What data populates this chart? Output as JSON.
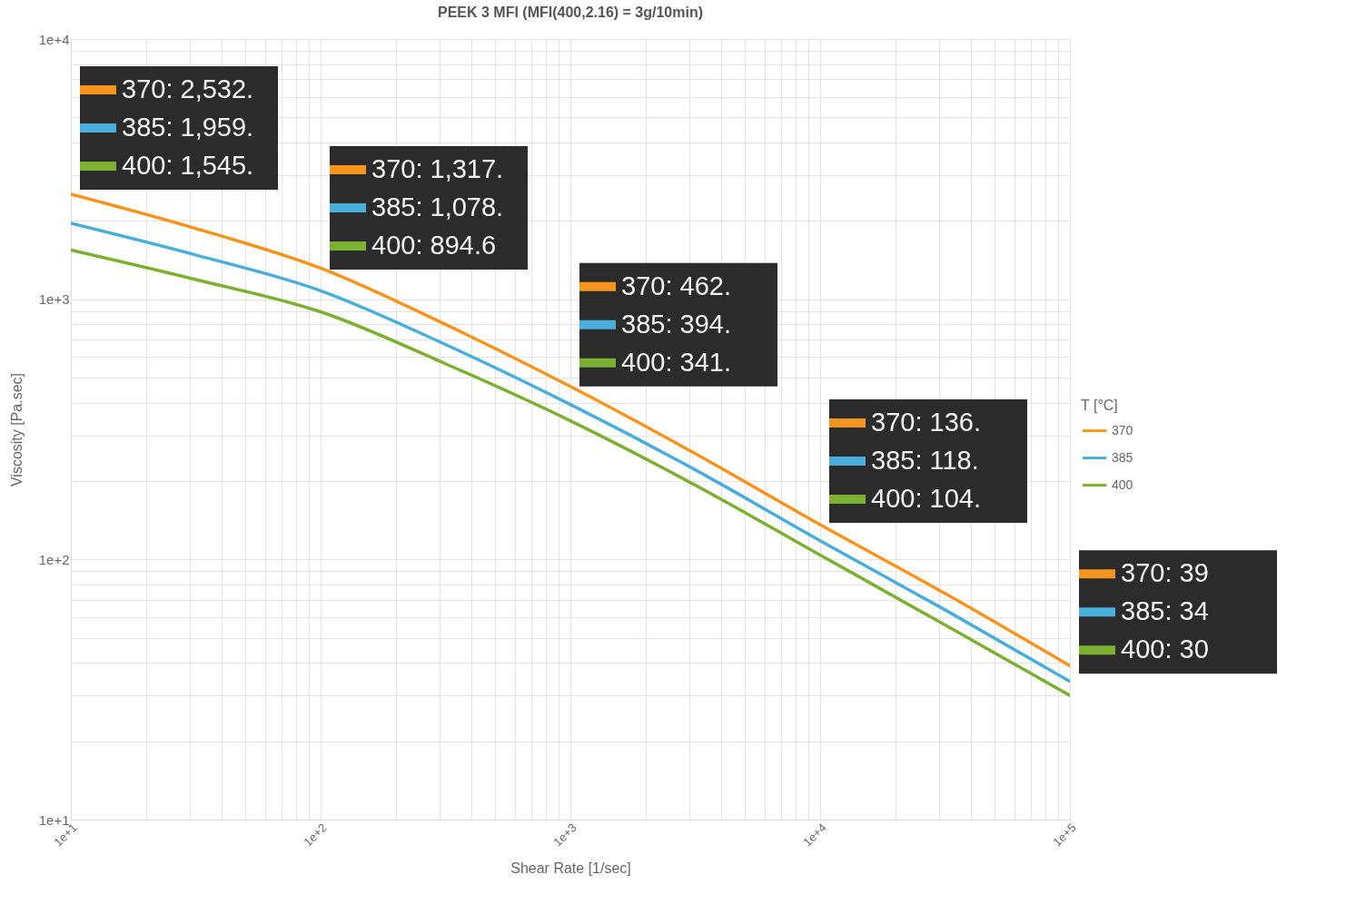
{
  "chart_data": {
    "type": "line",
    "title": "PEEK 3 MFI (MFI(400,2.16) = 3g/10min)",
    "xlabel": "Shear Rate [1/sec]",
    "ylabel": "Viscosity [Pa.sec]",
    "legend_title": "T [°C]",
    "legend": "right",
    "grid": true,
    "log": "xy",
    "marker": "none",
    "line_style": "solid",
    "x": [
      10,
      31.6,
      100,
      316,
      1000,
      3162,
      10000,
      31623,
      100000
    ],
    "series": [
      {
        "name": "370",
        "color": "#f7941d",
        "values": [
          2532,
          1870,
          1317,
          800,
          462,
          255,
          136,
          74,
          39
        ]
      },
      {
        "name": "385",
        "color": "#4aaedb",
        "values": [
          1959,
          1480,
          1078,
          670,
          394,
          221,
          118,
          64,
          34
        ]
      },
      {
        "name": "400",
        "color": "#7cb030",
        "values": [
          1545,
          1190,
          894.6,
          565,
          341,
          193,
          104,
          56,
          30
        ]
      }
    ],
    "xlim": [
      10,
      100000
    ],
    "ylim": [
      10,
      10000
    ],
    "xticks": [
      {
        "value": 10,
        "label": "1e+1"
      },
      {
        "value": 20,
        "label": null
      },
      {
        "value": 30,
        "label": null
      },
      {
        "value": 40,
        "label": null
      },
      {
        "value": 50,
        "label": null
      },
      {
        "value": 60,
        "label": null
      },
      {
        "value": 70,
        "label": null
      },
      {
        "value": 80,
        "label": null
      },
      {
        "value": 90,
        "label": null
      },
      {
        "value": 100,
        "label": "1e+2"
      },
      {
        "value": 200,
        "label": null
      },
      {
        "value": 300,
        "label": null
      },
      {
        "value": 400,
        "label": null
      },
      {
        "value": 500,
        "label": null
      },
      {
        "value": 600,
        "label": null
      },
      {
        "value": 700,
        "label": null
      },
      {
        "value": 800,
        "label": null
      },
      {
        "value": 900,
        "label": null
      },
      {
        "value": 1000,
        "label": "1e+3"
      },
      {
        "value": 2000,
        "label": null
      },
      {
        "value": 3000,
        "label": null
      },
      {
        "value": 4000,
        "label": null
      },
      {
        "value": 5000,
        "label": null
      },
      {
        "value": 6000,
        "label": null
      },
      {
        "value": 7000,
        "label": null
      },
      {
        "value": 8000,
        "label": null
      },
      {
        "value": 9000,
        "label": null
      },
      {
        "value": 10000,
        "label": "1e+4"
      },
      {
        "value": 20000,
        "label": null
      },
      {
        "value": 30000,
        "label": null
      },
      {
        "value": 40000,
        "label": null
      },
      {
        "value": 50000,
        "label": null
      },
      {
        "value": 60000,
        "label": null
      },
      {
        "value": 70000,
        "label": null
      },
      {
        "value": 80000,
        "label": null
      },
      {
        "value": 90000,
        "label": null
      },
      {
        "value": 100000,
        "label": "1e+5"
      }
    ],
    "yticks": [
      {
        "value": 10,
        "label": "1e+1"
      },
      {
        "value": 20,
        "label": null
      },
      {
        "value": 30,
        "label": null
      },
      {
        "value": 40,
        "label": null
      },
      {
        "value": 50,
        "label": null
      },
      {
        "value": 60,
        "label": null
      },
      {
        "value": 70,
        "label": null
      },
      {
        "value": 80,
        "label": null
      },
      {
        "value": 90,
        "label": null
      },
      {
        "value": 100,
        "label": "1e+2"
      },
      {
        "value": 200,
        "label": null
      },
      {
        "value": 300,
        "label": null
      },
      {
        "value": 400,
        "label": null
      },
      {
        "value": 500,
        "label": null
      },
      {
        "value": 600,
        "label": null
      },
      {
        "value": 700,
        "label": null
      },
      {
        "value": 800,
        "label": null
      },
      {
        "value": 900,
        "label": null
      },
      {
        "value": 1000,
        "label": "1e+3"
      },
      {
        "value": 2000,
        "label": null
      },
      {
        "value": 3000,
        "label": null
      },
      {
        "value": 4000,
        "label": null
      },
      {
        "value": 5000,
        "label": null
      },
      {
        "value": 6000,
        "label": null
      },
      {
        "value": 7000,
        "label": null
      },
      {
        "value": 8000,
        "label": null
      },
      {
        "value": 9000,
        "label": null
      },
      {
        "value": 10000,
        "label": "1e+4"
      }
    ],
    "annotations": [
      "370: 2,532.",
      "385: 1,959.",
      "400: 1,545.",
      "370: 1,317.",
      "385: 1,078.",
      "400: 894.6",
      "370: 462.",
      "385: 394.",
      "400: 341.",
      "370: 136.",
      "385: 118.",
      "400: 104.",
      "370: 39",
      "385: 34",
      "400: 30"
    ]
  }
}
